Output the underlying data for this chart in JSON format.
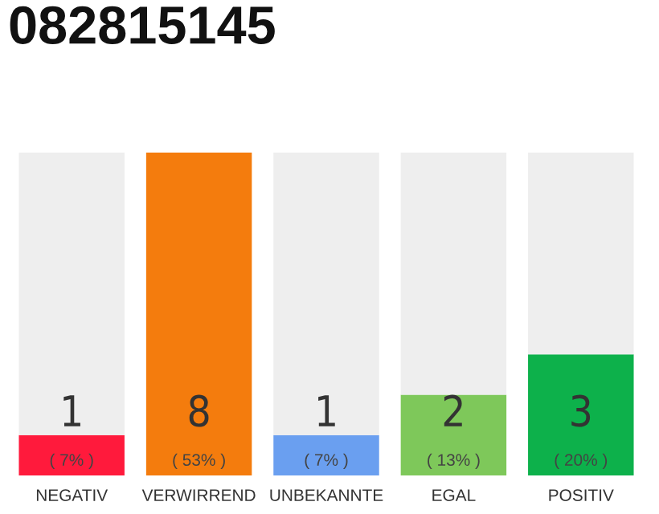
{
  "chart_data": {
    "type": "bar",
    "title": "082815145",
    "categories": [
      "NEGATIV",
      "VERWIRREND",
      "UNBEKANNTE",
      "EGAL",
      "POSITIV"
    ],
    "stacked": true,
    "ylim": [
      0,
      8
    ],
    "tick_labels": "x",
    "grid": false,
    "legend": false,
    "series": [
      {
        "colors": [
          "#ff1a3c",
          "#f47c0d",
          "#6a9ff0",
          "#7ec85a",
          "#0db14b"
        ],
        "values": [
          1,
          8,
          1,
          2,
          3
        ],
        "value_labels": [
          "1",
          "8",
          "1",
          "2",
          "3"
        ]
      },
      {
        "color": "#eeeeee",
        "values": [
          7,
          0,
          7,
          6,
          5
        ]
      }
    ],
    "annotations": [
      "( 7% )",
      "( 53% )",
      "( 7% )",
      "( 13% )",
      "( 20% )"
    ]
  }
}
